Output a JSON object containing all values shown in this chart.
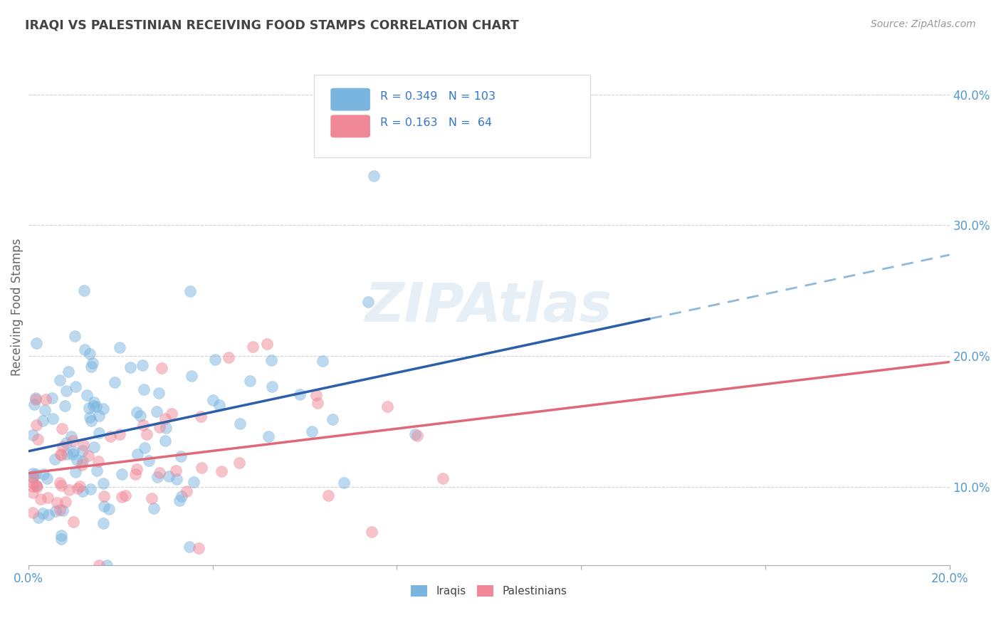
{
  "title": "IRAQI VS PALESTINIAN RECEIVING FOOD STAMPS CORRELATION CHART",
  "source": "Source: ZipAtlas.com",
  "ylabel": "Receiving Food Stamps",
  "xlim": [
    0.0,
    0.2
  ],
  "ylim": [
    0.04,
    0.435
  ],
  "yticks": [
    0.1,
    0.2,
    0.3,
    0.4
  ],
  "ytick_labels": [
    "10.0%",
    "20.0%",
    "30.0%",
    "40.0%"
  ],
  "watermark": "ZIPAtlas",
  "iraqis_color": "#7ab5e0",
  "palestinians_color": "#f08898",
  "iraqis_line_color": "#2b5faa",
  "palestinians_line_color": "#e06878",
  "iraqis_line_dash_color": "#90b8d8",
  "background_color": "#ffffff",
  "grid_color": "#cccccc",
  "title_color": "#444444",
  "axis_label_color": "#5599cc",
  "iraqis_intercept": 0.128,
  "iraqis_slope": 0.7,
  "palestinians_intercept": 0.115,
  "palestinians_slope": 0.32
}
